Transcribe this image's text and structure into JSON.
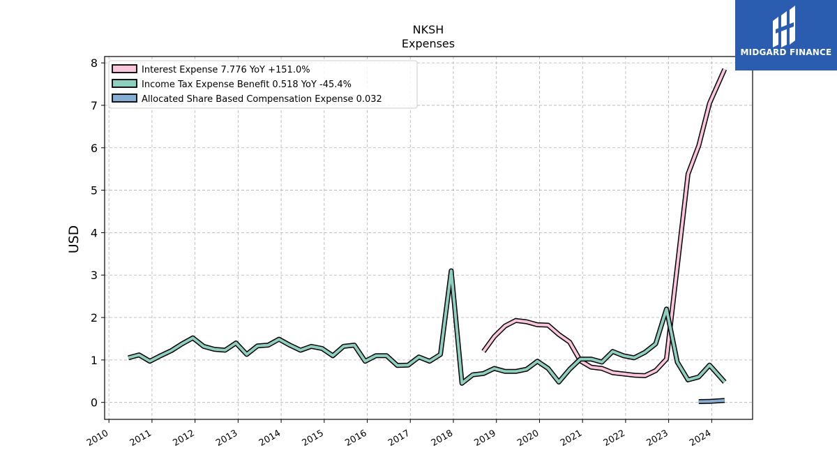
{
  "chart_data": {
    "type": "line",
    "title": "NKSH",
    "subtitle": "Expenses",
    "ylabel": "USD",
    "xlabel": "",
    "ylim": [
      -0.4,
      8.15
    ],
    "xlim": [
      2009.9,
      2024.95
    ],
    "yticks": [
      0,
      1,
      2,
      3,
      4,
      5,
      6,
      7,
      8
    ],
    "xticks": [
      "2010",
      "2011",
      "2012",
      "2013",
      "2014",
      "2015",
      "2016",
      "2017",
      "2018",
      "2019",
      "2020",
      "2021",
      "2022",
      "2023",
      "2024"
    ],
    "grid": true,
    "legend_position": "top-left",
    "series": [
      {
        "name": "Interest Expense",
        "legend_label": "Interest Expense  7.776 YoY +151.0%",
        "color": "#f9c6dc",
        "points": [
          [
            2018.7,
            1.2
          ],
          [
            2018.95,
            1.55
          ],
          [
            2019.2,
            1.8
          ],
          [
            2019.45,
            1.93
          ],
          [
            2019.7,
            1.9
          ],
          [
            2019.95,
            1.83
          ],
          [
            2020.2,
            1.82
          ],
          [
            2020.45,
            1.6
          ],
          [
            2020.7,
            1.42
          ],
          [
            2020.95,
            0.98
          ],
          [
            2021.2,
            0.83
          ],
          [
            2021.45,
            0.8
          ],
          [
            2021.7,
            0.7
          ],
          [
            2021.95,
            0.67
          ],
          [
            2022.2,
            0.64
          ],
          [
            2022.45,
            0.63
          ],
          [
            2022.7,
            0.75
          ],
          [
            2022.95,
            1.02
          ],
          [
            2023.2,
            3.2
          ],
          [
            2023.45,
            5.38
          ],
          [
            2023.7,
            6.05
          ],
          [
            2023.95,
            7.05
          ],
          [
            2024.3,
            7.85
          ]
        ]
      },
      {
        "name": "Income Tax Expense Benefit",
        "legend_label": "Income Tax Expense Benefit  0.518 YoY -45.4%",
        "color": "#8ecfc0",
        "points": [
          [
            2010.45,
            1.05
          ],
          [
            2010.7,
            1.12
          ],
          [
            2010.95,
            0.97
          ],
          [
            2011.2,
            1.1
          ],
          [
            2011.45,
            1.22
          ],
          [
            2011.7,
            1.38
          ],
          [
            2011.95,
            1.52
          ],
          [
            2012.2,
            1.32
          ],
          [
            2012.45,
            1.25
          ],
          [
            2012.7,
            1.23
          ],
          [
            2012.95,
            1.4
          ],
          [
            2013.2,
            1.13
          ],
          [
            2013.45,
            1.33
          ],
          [
            2013.7,
            1.35
          ],
          [
            2013.95,
            1.49
          ],
          [
            2014.2,
            1.35
          ],
          [
            2014.45,
            1.23
          ],
          [
            2014.7,
            1.32
          ],
          [
            2014.95,
            1.27
          ],
          [
            2015.2,
            1.1
          ],
          [
            2015.45,
            1.32
          ],
          [
            2015.7,
            1.35
          ],
          [
            2015.95,
            0.97
          ],
          [
            2016.2,
            1.1
          ],
          [
            2016.45,
            1.1
          ],
          [
            2016.7,
            0.87
          ],
          [
            2016.95,
            0.88
          ],
          [
            2017.2,
            1.07
          ],
          [
            2017.45,
            0.97
          ],
          [
            2017.7,
            1.13
          ],
          [
            2017.95,
            3.1
          ],
          [
            2018.2,
            0.45
          ],
          [
            2018.45,
            0.65
          ],
          [
            2018.7,
            0.68
          ],
          [
            2018.95,
            0.8
          ],
          [
            2019.2,
            0.73
          ],
          [
            2019.45,
            0.73
          ],
          [
            2019.7,
            0.78
          ],
          [
            2019.95,
            0.97
          ],
          [
            2020.2,
            0.8
          ],
          [
            2020.45,
            0.48
          ],
          [
            2020.7,
            0.78
          ],
          [
            2020.95,
            1.02
          ],
          [
            2021.2,
            1.02
          ],
          [
            2021.45,
            0.95
          ],
          [
            2021.7,
            1.2
          ],
          [
            2021.95,
            1.1
          ],
          [
            2022.2,
            1.05
          ],
          [
            2022.45,
            1.18
          ],
          [
            2022.7,
            1.38
          ],
          [
            2022.95,
            2.2
          ],
          [
            2023.2,
            0.95
          ],
          [
            2023.45,
            0.53
          ],
          [
            2023.7,
            0.6
          ],
          [
            2023.95,
            0.88
          ],
          [
            2024.3,
            0.48
          ]
        ]
      },
      {
        "name": "Allocated Share Based Compensation Expense",
        "legend_label": "Allocated Share Based Compensation Expense  0.032",
        "color": "#86aed4",
        "points": [
          [
            2023.7,
            0.02
          ],
          [
            2023.95,
            0.025
          ],
          [
            2024.3,
            0.045
          ]
        ]
      }
    ]
  },
  "watermark": {
    "brand": "MIDGARD FINANCE",
    "color": "#2a5db0"
  }
}
